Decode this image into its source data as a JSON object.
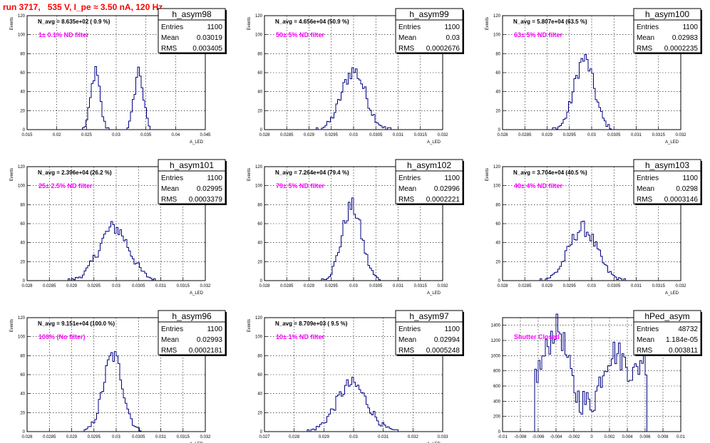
{
  "title": "run 3717,   535 V, I_pe ≈ 3.50 nA, 120 Hz",
  "stat_labels": {
    "entries": "Entries",
    "mean": "Mean",
    "rms": "RMS"
  },
  "colors": {
    "title": "#ff0000",
    "histogram": "#000080",
    "filter_text": "#ff00ff"
  },
  "chart_data": [
    {
      "type": "histogram",
      "name": "h_asym98",
      "navg": "N_avg = 8.635e+02 ( 0.9 %)",
      "filter": "1± 0.1% ND filter",
      "entries": "1100",
      "mean": "0.03019",
      "rms": "0.003405",
      "xlabel": "A_LED",
      "ylabel": "Events",
      "xlim": [
        0.015,
        0.045
      ],
      "ylim": [
        0,
        120
      ],
      "xticks": [
        "0.015",
        "0.02",
        "0.025",
        "0.03",
        "0.035",
        "0.04",
        "0.045"
      ],
      "yticks": [
        "0",
        "20",
        "40",
        "60",
        "80",
        "100",
        "120"
      ],
      "peaks": [
        {
          "mean": 0.0265,
          "sigma": 0.00075,
          "amp": 60
        },
        {
          "mean": 0.0338,
          "sigma": 0.00075,
          "amp": 62
        }
      ],
      "grid": true
    },
    {
      "type": "histogram",
      "name": "h_asym99",
      "navg": "N_avg = 4.656e+04 (50.9 %)",
      "filter": "50± 5% ND filter",
      "entries": "1100",
      "mean": "0.03",
      "rms": "0.0002676",
      "xlabel": "A_LED",
      "ylabel": "Events",
      "xlim": [
        0.028,
        0.032
      ],
      "ylim": [
        0,
        120
      ],
      "xticks": [
        "0.028",
        "0.0285",
        "0.029",
        "0.0295",
        "0.03",
        "0.0305",
        "0.031",
        "0.0315",
        "0.032"
      ],
      "yticks": [
        "0",
        "20",
        "40",
        "60",
        "80",
        "100",
        "120"
      ],
      "peaks": [
        {
          "mean": 0.03,
          "sigma": 0.00027,
          "amp": 62
        }
      ],
      "grid": true
    },
    {
      "type": "histogram",
      "name": "h_asym100",
      "navg": "N_avg = 5.807e+04 (63.5 %)",
      "filter": "63± 5% ND filter",
      "entries": "1100",
      "mean": "0.02983",
      "rms": "0.0002235",
      "xlabel": "A_LED",
      "ylabel": "Events",
      "xlim": [
        0.028,
        0.032
      ],
      "ylim": [
        0,
        120
      ],
      "xticks": [
        "0.028",
        "0.0285",
        "0.029",
        "0.0295",
        "0.03",
        "0.0305",
        "0.031",
        "0.0315",
        "0.032"
      ],
      "yticks": [
        "0",
        "20",
        "40",
        "60",
        "80",
        "100",
        "120"
      ],
      "peaks": [
        {
          "mean": 0.02983,
          "sigma": 0.000223,
          "amp": 74
        }
      ],
      "grid": true
    },
    {
      "type": "histogram",
      "name": "h_asym101",
      "navg": "N_avg = 2.396e+04 (26.2 %)",
      "filter": "25± 2.5% ND filter",
      "entries": "1100",
      "mean": "0.02995",
      "rms": "0.0003379",
      "xlabel": "A_LED",
      "ylabel": "Events",
      "xlim": [
        0.028,
        0.032
      ],
      "ylim": [
        0,
        120
      ],
      "xticks": [
        "0.028",
        "0.0285",
        "0.029",
        "0.0295",
        "0.03",
        "0.0305",
        "0.031",
        "0.0315",
        "0.032"
      ],
      "yticks": [
        "0",
        "20",
        "40",
        "60",
        "80",
        "100",
        "120"
      ],
      "peaks": [
        {
          "mean": 0.02995,
          "sigma": 0.000338,
          "amp": 56
        }
      ],
      "grid": true
    },
    {
      "type": "histogram",
      "name": "h_asym102",
      "navg": "N_avg = 7.264e+04 (79.4 %)",
      "filter": "79± 5% ND filter",
      "entries": "1100",
      "mean": "0.02996",
      "rms": "0.0002221",
      "xlabel": "A_LED",
      "ylabel": "Events",
      "xlim": [
        0.028,
        0.032
      ],
      "ylim": [
        0,
        120
      ],
      "xticks": [
        "0.028",
        "0.0285",
        "0.029",
        "0.0295",
        "0.03",
        "0.0305",
        "0.031",
        "0.0315",
        "0.032"
      ],
      "yticks": [
        "0",
        "20",
        "40",
        "60",
        "80",
        "100",
        "120"
      ],
      "peaks": [
        {
          "mean": 0.02996,
          "sigma": 0.000222,
          "amp": 78
        }
      ],
      "grid": true
    },
    {
      "type": "histogram",
      "name": "h_asym103",
      "navg": "N_avg = 3.704e+04 (40.5 %)",
      "filter": "40± 4% ND filter",
      "entries": "1100",
      "mean": "0.0298",
      "rms": "0.0003146",
      "xlabel": "A_LED",
      "ylabel": "Events",
      "xlim": [
        0.028,
        0.032
      ],
      "ylim": [
        0,
        120
      ],
      "xticks": [
        "0.028",
        "0.0285",
        "0.029",
        "0.0295",
        "0.03",
        "0.0305",
        "0.031",
        "0.0315",
        "0.032"
      ],
      "yticks": [
        "0",
        "20",
        "40",
        "60",
        "80",
        "100",
        "120"
      ],
      "peaks": [
        {
          "mean": 0.0298,
          "sigma": 0.000315,
          "amp": 55
        }
      ],
      "grid": true
    },
    {
      "type": "histogram",
      "name": "h_asym96",
      "navg": "N_avg = 9.151e+04 (100.0 %)",
      "filter": "100% (No filter)",
      "entries": "1100",
      "mean": "0.02993",
      "rms": "0.0002181",
      "xlabel": "A_LED",
      "ylabel": "Events",
      "xlim": [
        0.028,
        0.032
      ],
      "ylim": [
        0,
        120
      ],
      "xticks": [
        "0.028",
        "0.0285",
        "0.029",
        "0.0295",
        "0.03",
        "0.0305",
        "0.031",
        "0.0315",
        "0.032"
      ],
      "yticks": [
        "0",
        "20",
        "40",
        "60",
        "80",
        "100",
        "120"
      ],
      "peaks": [
        {
          "mean": 0.02993,
          "sigma": 0.000218,
          "amp": 80
        }
      ],
      "grid": true
    },
    {
      "type": "histogram",
      "name": "h_asym97",
      "navg": "N_avg = 8.709e+03 ( 9.5 %)",
      "filter": "10± 1% ND filter",
      "entries": "1100",
      "mean": "0.02994",
      "rms": "0.0005248",
      "xlabel": "A_LED",
      "ylabel": "Events",
      "xlim": [
        0.027,
        0.033
      ],
      "ylim": [
        0,
        120
      ],
      "xticks": [
        "0.027",
        "0.028",
        "0.029",
        "0.03",
        "0.031",
        "0.032",
        "0.033"
      ],
      "yticks": [
        "0",
        "20",
        "40",
        "60",
        "80",
        "100",
        "120"
      ],
      "peaks": [
        {
          "mean": 0.02994,
          "sigma": 0.000525,
          "amp": 50
        }
      ],
      "grid": true
    },
    {
      "type": "histogram",
      "name": "hPed_asym",
      "navg": "",
      "filter": "Shutter Closed",
      "entries": "48732",
      "mean": "1.184e-05",
      "rms": "0.003811",
      "xlabel": "",
      "ylabel": "",
      "xlim": [
        -0.01,
        0.01
      ],
      "ylim": [
        0,
        1500
      ],
      "xticks": [
        "-0.01",
        "-0.008",
        "-0.006",
        "-0.004",
        "-0.002",
        "0",
        "0.002",
        "0.004",
        "0.006",
        "0.008",
        "0.01"
      ],
      "yticks": [
        "0",
        "200",
        "400",
        "600",
        "800",
        "1000",
        "1200",
        "1400"
      ],
      "pedestal": true,
      "grid": true
    }
  ]
}
